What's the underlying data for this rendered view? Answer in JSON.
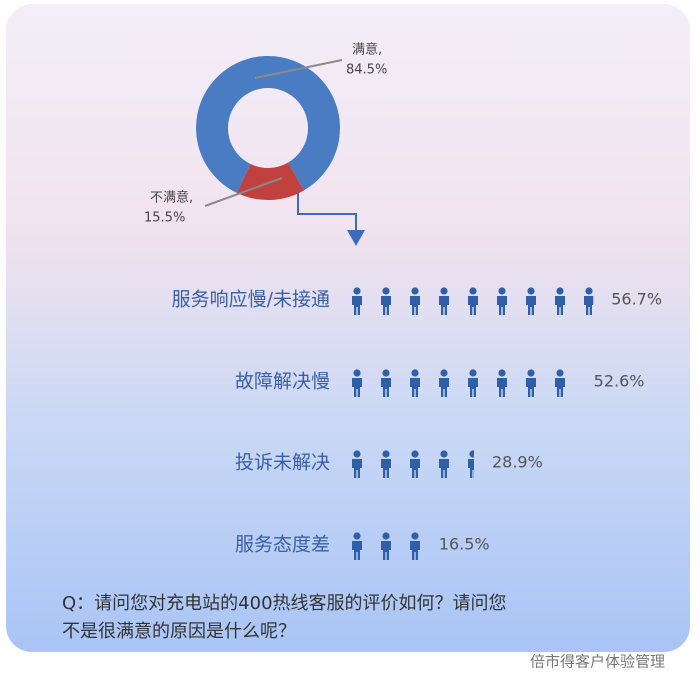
{
  "chart_data": [
    {
      "type": "pie",
      "categories": [
        "满意,",
        "不满意,"
      ],
      "values": [
        84.5,
        15.5
      ],
      "value_labels": [
        "84.5%",
        "15.5%"
      ],
      "colors": [
        "#4a7cc4",
        "#c0413d"
      ],
      "donut": true
    },
    {
      "type": "pictogram",
      "categories": [
        "服务响应慢/未接通",
        "故障解决慢",
        "投诉未解决",
        "服务态度差"
      ],
      "values": [
        56.7,
        52.6,
        28.9,
        16.5
      ],
      "value_labels": [
        "56.7%",
        "52.6%",
        "28.9%",
        "16.5%"
      ],
      "color": "#2f5fa8"
    }
  ],
  "question": [
    "Q：请问您对充电站的400热线客服的评价如何？请问您",
    "不是很满意的原因是什么呢？"
  ],
  "watermark": "倍市得客户体验管理"
}
